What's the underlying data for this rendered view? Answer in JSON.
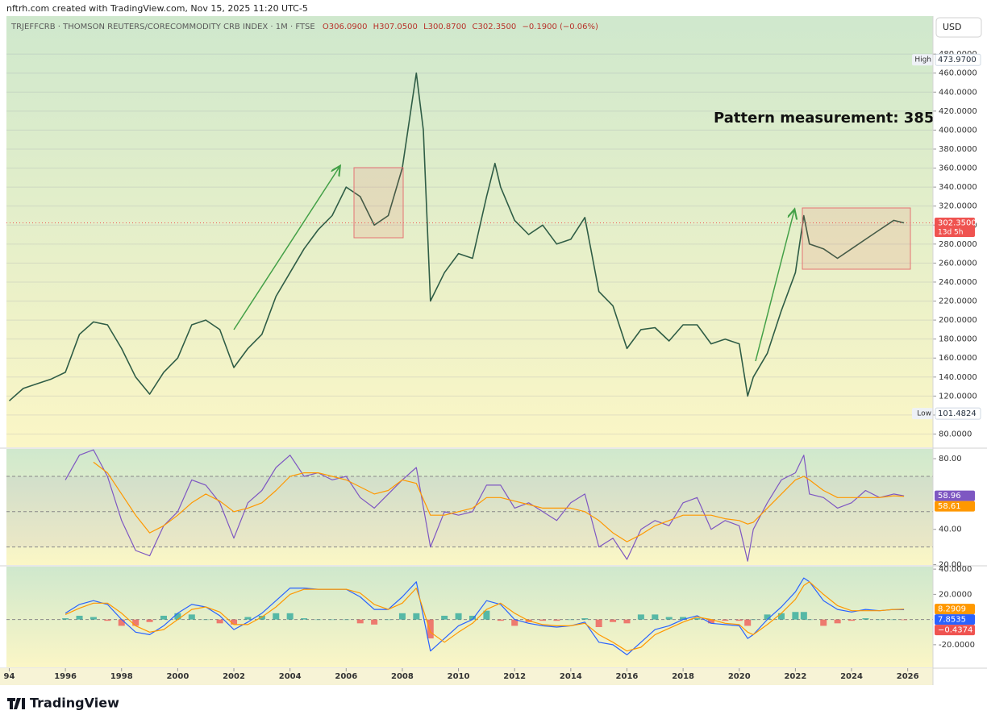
{
  "header": {
    "credit": "nftrh.com created with TradingView.com, Nov 15, 2025 11:20 UTC-5"
  },
  "legend": {
    "symbol": "TRJEFFCRB · THOMSON REUTERS/CORECOMMODITY CRB INDEX · 1M · FTSE",
    "open": "O306.0900",
    "high": "H307.0500",
    "low": "L300.8700",
    "close": "C302.3500",
    "change": "−0.1900 (−0.06%)"
  },
  "currency": "USD",
  "footer": {
    "brand": "TradingView"
  },
  "chart_data": [
    {
      "type": "line",
      "xlim": [
        1993.9,
        2026.9
      ],
      "ylim": [
        66,
        520
      ],
      "grid": true,
      "color": "#2f5d46",
      "x": [
        1994,
        1994.5,
        1995,
        1995.5,
        1996,
        1996.5,
        1997,
        1997.5,
        1998,
        1998.5,
        1999,
        1999.5,
        2000,
        2000.5,
        2001,
        2001.5,
        2002,
        2002.5,
        2003,
        2003.5,
        2004,
        2004.5,
        2005,
        2005.5,
        2006,
        2006.5,
        2007,
        2007.5,
        2008,
        2008.5,
        2008.75,
        2009,
        2009.5,
        2010,
        2010.5,
        2011,
        2011.3,
        2011.5,
        2012,
        2012.5,
        2013,
        2013.5,
        2014,
        2014.5,
        2015,
        2015.5,
        2016,
        2016.5,
        2017,
        2017.5,
        2018,
        2018.5,
        2019,
        2019.5,
        2020,
        2020.3,
        2020.5,
        2021,
        2021.5,
        2022,
        2022.3,
        2022.5,
        2023,
        2023.5,
        2024,
        2024.5,
        2025,
        2025.5,
        2025.87
      ],
      "values": [
        115,
        128,
        133,
        138,
        145,
        185,
        198,
        195,
        170,
        140,
        122,
        145,
        160,
        195,
        200,
        190,
        150,
        170,
        185,
        225,
        250,
        275,
        295,
        310,
        340,
        330,
        300,
        310,
        360,
        460,
        400,
        220,
        250,
        270,
        265,
        330,
        365,
        340,
        305,
        290,
        300,
        280,
        285,
        308,
        230,
        215,
        170,
        190,
        192,
        178,
        195,
        195,
        175,
        180,
        175,
        120,
        140,
        165,
        210,
        250,
        310,
        280,
        275,
        265,
        275,
        285,
        295,
        305,
        302.35
      ],
      "yticks": [
        {
          "value": 80,
          "label": "80.0000"
        },
        {
          "value": 100,
          "label": "100.0000"
        },
        {
          "value": 120,
          "label": "120.0000"
        },
        {
          "value": 140,
          "label": "140.0000"
        },
        {
          "value": 160,
          "label": "160.0000"
        },
        {
          "value": 180,
          "label": "180.0000"
        },
        {
          "value": 200,
          "label": "200.0000"
        },
        {
          "value": 220,
          "label": "220.0000"
        },
        {
          "value": 240,
          "label": "240.0000"
        },
        {
          "value": 260,
          "label": "260.0000"
        },
        {
          "value": 280,
          "label": "280.0000"
        },
        {
          "value": 300,
          "label": "300.0000"
        },
        {
          "value": 320,
          "label": "320.0000"
        },
        {
          "value": 340,
          "label": "340.0000"
        },
        {
          "value": 360,
          "label": "360.0000"
        },
        {
          "value": 380,
          "label": "380.0000"
        },
        {
          "value": 400,
          "label": "400.0000"
        },
        {
          "value": 420,
          "label": "420.0000"
        },
        {
          "value": 440,
          "label": "440.0000"
        },
        {
          "value": 460,
          "label": "460.0000"
        },
        {
          "value": 480,
          "label": "480.0000"
        }
      ],
      "last": {
        "value": 302.35,
        "label": "302.3500",
        "countdown": "13d 5h",
        "color": "#ef5350"
      },
      "high": {
        "text": "High",
        "value": 473.97,
        "label": "473.9700"
      },
      "low": {
        "text": "Low",
        "value": 101.4824,
        "label": "101.4824"
      },
      "annotations": [
        {
          "text": "Pattern measurement: 385"
        }
      ]
    },
    {
      "type": "line",
      "xlim": [
        1993.9,
        2026.9
      ],
      "ylim": [
        19.8,
        85.5
      ],
      "grid": false,
      "hlines": [
        70,
        50,
        30
      ],
      "x": [
        1996,
        1996.5,
        1997,
        1997.5,
        1998,
        1998.5,
        1999,
        1999.5,
        2000,
        2000.5,
        2001,
        2001.5,
        2002,
        2002.5,
        2003,
        2003.5,
        2004,
        2004.5,
        2005,
        2005.5,
        2006,
        2006.5,
        2007,
        2007.5,
        2008,
        2008.5,
        2009,
        2009.5,
        2010,
        2010.5,
        2011,
        2011.5,
        2012,
        2012.5,
        2013,
        2013.5,
        2014,
        2014.5,
        2015,
        2015.5,
        2016,
        2016.5,
        2017,
        2017.5,
        2018,
        2018.5,
        2019,
        2019.5,
        2020,
        2020.3,
        2020.5,
        2021,
        2021.5,
        2022,
        2022.3,
        2022.5,
        2023,
        2023.5,
        2024,
        2024.5,
        2025,
        2025.5,
        2025.87
      ],
      "series": [
        {
          "color": "#7e57c2",
          "last_label": "58.96",
          "values": [
            68,
            82,
            85,
            70,
            45,
            28,
            25,
            42,
            50,
            68,
            65,
            55,
            35,
            55,
            62,
            75,
            82,
            70,
            72,
            68,
            70,
            58,
            52,
            60,
            68,
            75,
            30,
            50,
            48,
            50,
            65,
            65,
            52,
            55,
            50,
            45,
            55,
            60,
            30,
            35,
            23,
            40,
            45,
            42,
            55,
            58,
            40,
            45,
            42,
            22,
            40,
            55,
            68,
            72,
            82,
            60,
            58,
            52,
            55,
            62,
            58,
            60,
            58.96
          ]
        },
        {
          "color": "#ff9800",
          "last_label": "58.61",
          "values": [
            null,
            null,
            78,
            72,
            60,
            48,
            38,
            42,
            48,
            55,
            60,
            56,
            50,
            52,
            55,
            62,
            70,
            72,
            72,
            70,
            68,
            64,
            60,
            62,
            68,
            66,
            48,
            48,
            50,
            52,
            58,
            58,
            56,
            54,
            52,
            52,
            52,
            50,
            45,
            38,
            33,
            37,
            42,
            45,
            48,
            48,
            48,
            46,
            45,
            43,
            44,
            52,
            60,
            68,
            70,
            68,
            62,
            58,
            58,
            58,
            58,
            59,
            58.61
          ]
        }
      ],
      "yticks": [
        {
          "value": 20,
          "label": "20.00"
        },
        {
          "value": 40,
          "label": "40.00"
        },
        {
          "value": 80,
          "label": "80.00"
        }
      ]
    },
    {
      "type": "line",
      "xlim": [
        1993.9,
        2026.9
      ],
      "ylim": [
        -38,
        42
      ],
      "grid": false,
      "hlines": [
        0
      ],
      "x": [
        1996,
        1996.5,
        1997,
        1997.5,
        1998,
        1998.5,
        1999,
        1999.5,
        2000,
        2000.5,
        2001,
        2001.5,
        2002,
        2002.5,
        2003,
        2003.5,
        2004,
        2004.5,
        2005,
        2005.5,
        2006,
        2006.5,
        2007,
        2007.5,
        2008,
        2008.5,
        2009,
        2009.5,
        2010,
        2010.5,
        2011,
        2011.5,
        2012,
        2012.5,
        2013,
        2013.5,
        2014,
        2014.5,
        2015,
        2015.5,
        2016,
        2016.5,
        2017,
        2017.5,
        2018,
        2018.5,
        2019,
        2019.5,
        2020,
        2020.3,
        2020.5,
        2021,
        2021.5,
        2022,
        2022.3,
        2022.5,
        2023,
        2023.5,
        2024,
        2024.5,
        2025,
        2025.5,
        2025.87
      ],
      "series": [
        {
          "type": "bar",
          "color": "#26a69a",
          "negative_color": "#ef5350",
          "last_label": "−0.4374",
          "values": [
            1,
            3,
            2,
            -1,
            -5,
            -5,
            -2,
            3,
            5,
            4,
            0,
            -3,
            -4,
            2,
            3,
            5,
            5,
            1,
            0,
            0,
            0,
            -3,
            -4,
            0,
            5,
            5,
            -15,
            3,
            5,
            3,
            7,
            -1,
            -5,
            -2,
            -1,
            -1,
            0,
            1,
            -6,
            -2,
            -3,
            4,
            4,
            2,
            2,
            1,
            -3,
            -1,
            -1,
            -5,
            0,
            4,
            5,
            6,
            6,
            0,
            -5,
            -3,
            -1,
            1,
            0,
            0,
            -0.4374
          ]
        },
        {
          "color": "#2962ff",
          "last_label": "7.8535",
          "values": [
            5,
            12,
            15,
            12,
            0,
            -10,
            -12,
            -5,
            5,
            12,
            10,
            3,
            -8,
            -2,
            5,
            15,
            25,
            25,
            24,
            24,
            24,
            18,
            8,
            8,
            18,
            30,
            -25,
            -15,
            -5,
            0,
            15,
            12,
            0,
            -3,
            -5,
            -6,
            -5,
            -2,
            -18,
            -20,
            -28,
            -18,
            -8,
            -5,
            0,
            3,
            -3,
            -4,
            -5,
            -15,
            -12,
            0,
            10,
            22,
            33,
            30,
            15,
            8,
            6,
            8,
            7,
            8,
            7.8535
          ]
        },
        {
          "color": "#ff9800",
          "last_label": "8.2909",
          "values": [
            4,
            9,
            13,
            13,
            5,
            -5,
            -10,
            -8,
            0,
            8,
            10,
            6,
            -4,
            -4,
            2,
            10,
            20,
            24,
            24,
            24,
            24,
            21,
            12,
            8,
            13,
            25,
            -10,
            -18,
            -10,
            -3,
            8,
            13,
            5,
            -1,
            -4,
            -5,
            -5,
            -3,
            -12,
            -18,
            -25,
            -22,
            -12,
            -7,
            -2,
            2,
            0,
            -3,
            -4,
            -10,
            -12,
            -4,
            5,
            16,
            27,
            30,
            20,
            11,
            7,
            7,
            7,
            8,
            8.2909
          ]
        }
      ],
      "yticks": [
        {
          "value": -20,
          "label": "-20.0000"
        },
        {
          "value": 20,
          "label": "20.0000"
        },
        {
          "value": 40,
          "label": "40.0000"
        }
      ],
      "xticks": [
        {
          "value": 1994,
          "label": "94"
        },
        1996,
        1998,
        2000,
        2002,
        2004,
        2006,
        2008,
        2010,
        2012,
        2014,
        2016,
        2018,
        2020,
        2022,
        2024,
        2026
      ]
    }
  ]
}
